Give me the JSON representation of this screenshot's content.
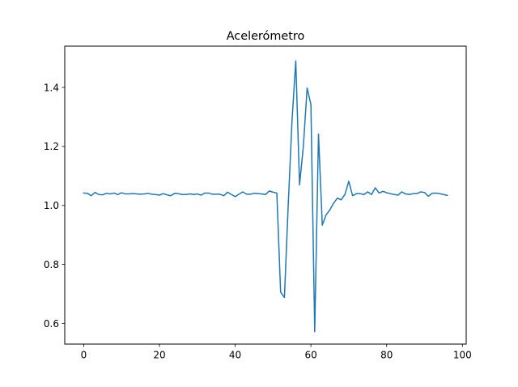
{
  "chart_data": {
    "type": "line",
    "title": "Acelerómetro",
    "xlabel": "",
    "ylabel": "",
    "xlim": [
      -5,
      101
    ],
    "ylim": [
      0.53,
      1.54
    ],
    "xticks": [
      0,
      20,
      40,
      60,
      80,
      100
    ],
    "xtick_labels": [
      "0",
      "20",
      "40",
      "60",
      "80",
      "100"
    ],
    "yticks": [
      0.6,
      0.8,
      1.0,
      1.2,
      1.4
    ],
    "ytick_labels": [
      "0.6",
      "0.8",
      "1.0",
      "1.2",
      "1.4"
    ],
    "grid": false,
    "series": [
      {
        "color": "#1f77b4",
        "x": [
          0,
          1,
          2,
          3,
          4,
          5,
          6,
          7,
          8,
          9,
          10,
          11,
          12,
          13,
          14,
          15,
          16,
          17,
          18,
          19,
          20,
          21,
          22,
          23,
          24,
          25,
          26,
          27,
          28,
          29,
          30,
          31,
          32,
          33,
          34,
          35,
          36,
          37,
          38,
          39,
          40,
          41,
          42,
          43,
          44,
          45,
          46,
          47,
          48,
          49,
          50,
          51,
          52,
          53,
          54,
          55,
          56,
          57,
          58,
          59,
          60,
          61,
          62,
          63,
          64,
          65,
          66,
          67,
          68,
          69,
          70,
          71,
          72,
          73,
          74,
          75,
          76,
          77,
          78,
          79,
          80,
          81,
          82,
          83,
          84,
          85,
          86,
          87,
          88,
          89,
          90,
          91,
          92,
          93,
          94,
          95,
          96
        ],
        "y": [
          1.042,
          1.041,
          1.033,
          1.044,
          1.037,
          1.036,
          1.041,
          1.039,
          1.042,
          1.037,
          1.043,
          1.039,
          1.039,
          1.04,
          1.039,
          1.038,
          1.039,
          1.041,
          1.038,
          1.037,
          1.035,
          1.04,
          1.036,
          1.033,
          1.041,
          1.04,
          1.037,
          1.037,
          1.039,
          1.037,
          1.039,
          1.035,
          1.042,
          1.042,
          1.038,
          1.038,
          1.038,
          1.033,
          1.045,
          1.037,
          1.03,
          1.038,
          1.046,
          1.038,
          1.038,
          1.041,
          1.04,
          1.039,
          1.037,
          1.049,
          1.045,
          1.042,
          0.706,
          0.688,
          1.0,
          1.285,
          1.49,
          1.07,
          1.2,
          1.398,
          1.342,
          0.572,
          1.242,
          0.933,
          0.968,
          0.985,
          1.008,
          1.025,
          1.019,
          1.038,
          1.082,
          1.033,
          1.04,
          1.04,
          1.037,
          1.046,
          1.037,
          1.06,
          1.042,
          1.048,
          1.043,
          1.04,
          1.037,
          1.035,
          1.046,
          1.039,
          1.037,
          1.04,
          1.04,
          1.046,
          1.044,
          1.031,
          1.041,
          1.042,
          1.04,
          1.037,
          1.034
        ]
      }
    ]
  }
}
